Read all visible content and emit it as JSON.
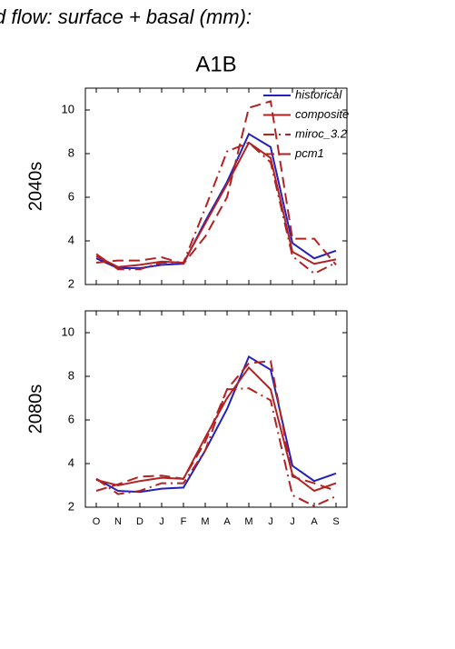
{
  "title": "d flow: surface + basal (mm):",
  "subtitle": "A1B",
  "chart_data": [
    {
      "type": "line",
      "ylabel": "2040s",
      "ylim": [
        2,
        11
      ],
      "yticks": [
        2,
        4,
        6,
        8,
        10
      ],
      "legend": "upper right",
      "series": [
        {
          "name": "historical",
          "color": "#2222bb",
          "dash": "solid",
          "values": [
            3.2,
            2.75,
            2.75,
            2.9,
            2.95,
            4.9,
            6.7,
            8.9,
            8.3,
            3.9,
            3.2,
            3.55
          ]
        },
        {
          "name": "composite",
          "color": "#b22222",
          "dash": "solid",
          "values": [
            3.3,
            2.8,
            2.9,
            3.05,
            3.0,
            4.8,
            6.6,
            8.5,
            7.8,
            3.5,
            2.95,
            3.15
          ]
        },
        {
          "name": "miroc_3.2",
          "color": "#b22222",
          "dash": "dashdot",
          "values": [
            3.4,
            2.7,
            2.7,
            3.0,
            3.0,
            5.5,
            8.1,
            8.5,
            7.6,
            3.3,
            2.5,
            3.0
          ]
        },
        {
          "name": "pcm1",
          "color": "#b22222",
          "dash": "dashed",
          "values": [
            3.0,
            3.1,
            3.1,
            3.25,
            2.95,
            4.2,
            6.0,
            10.1,
            10.4,
            4.1,
            4.1,
            2.9
          ]
        }
      ]
    },
    {
      "type": "line",
      "ylabel": "2080s",
      "ylim": [
        2,
        11
      ],
      "yticks": [
        2,
        4,
        6,
        8,
        10
      ],
      "categories": [
        "O",
        "N",
        "D",
        "J",
        "F",
        "M",
        "A",
        "M",
        "J",
        "J",
        "A",
        "S"
      ],
      "series": [
        {
          "color": "#2222bb",
          "dash": "solid",
          "values": [
            3.3,
            2.75,
            2.7,
            2.85,
            2.9,
            4.6,
            6.5,
            8.9,
            8.3,
            3.9,
            3.2,
            3.55
          ]
        },
        {
          "color": "#b22222",
          "dash": "solid",
          "values": [
            3.25,
            3.0,
            3.2,
            3.35,
            3.3,
            5.2,
            7.0,
            8.4,
            7.4,
            3.5,
            2.75,
            3.1
          ]
        },
        {
          "color": "#b22222",
          "dash": "dashdot",
          "values": [
            3.3,
            2.6,
            2.75,
            3.1,
            3.1,
            4.6,
            7.4,
            7.45,
            6.9,
            2.55,
            2.05,
            2.5
          ]
        },
        {
          "color": "#b22222",
          "dash": "dashed",
          "values": [
            2.75,
            3.05,
            3.4,
            3.45,
            3.3,
            5.0,
            7.4,
            8.6,
            8.7,
            3.4,
            3.1,
            2.75
          ]
        }
      ]
    }
  ]
}
